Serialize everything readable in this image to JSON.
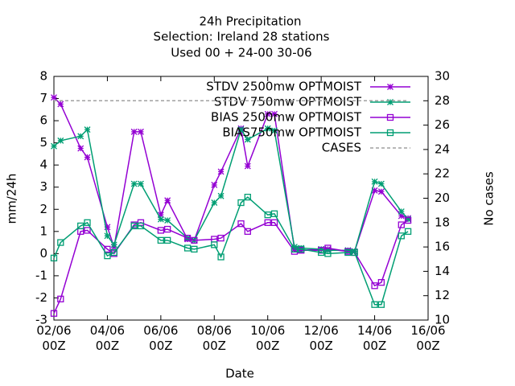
{
  "chart_data": {
    "type": "line",
    "title": "24h Precipitation",
    "subtitle": "Selection: Ireland      28 stations",
    "subtitle2": "Used  00 + 24-00 30-06",
    "xlabel": "Date",
    "ylabel": "mm/24h",
    "y2label": "No cases",
    "x": [
      0,
      0.25,
      1,
      1.25,
      2,
      2.25,
      3,
      3.25,
      4,
      4.25,
      5,
      5.25,
      6,
      6.25,
      7,
      7.25,
      8,
      8.25,
      9,
      9.25,
      10,
      10.25,
      11,
      11.25,
      12,
      12.25,
      13,
      13.25
    ],
    "xlim": [
      0,
      14
    ],
    "xticks": [
      {
        "value": 0,
        "label": "02/06\n00Z"
      },
      {
        "value": 2,
        "label": "04/06\n00Z"
      },
      {
        "value": 4,
        "label": "06/06\n00Z"
      },
      {
        "value": 6,
        "label": "08/06\n00Z"
      },
      {
        "value": 8,
        "label": "10/06\n00Z"
      },
      {
        "value": 10,
        "label": "12/06\n00Z"
      },
      {
        "value": 12,
        "label": "14/06\n00Z"
      },
      {
        "value": 14,
        "label": "16/06\n00Z"
      }
    ],
    "ylim": [
      -3,
      8
    ],
    "yticks": [
      -3,
      -2,
      -1,
      0,
      1,
      2,
      3,
      4,
      5,
      6,
      7,
      8
    ],
    "y2lim": [
      10,
      30
    ],
    "y2ticks": [
      10,
      12,
      14,
      16,
      18,
      20,
      22,
      24,
      26,
      28,
      30
    ],
    "legend": "top-right",
    "series": [
      {
        "name": "STDV 2500mw OPTMOIST",
        "color": "#9400d3",
        "marker": "cross",
        "values": [
          7.05,
          6.75,
          4.75,
          4.35,
          1.2,
          0.3,
          5.5,
          5.5,
          1.75,
          2.4,
          0.65,
          0.6,
          3.1,
          3.7,
          5.65,
          3.95,
          6.3,
          6.3,
          0.2,
          0.15,
          0.2,
          0.2,
          0.1,
          0.1,
          2.85,
          2.8,
          1.7,
          1.6
        ]
      },
      {
        "name": "STDV 750mw OPTMOIST",
        "color": "#009e73",
        "marker": "cross",
        "values": [
          4.85,
          5.1,
          5.3,
          5.6,
          0.8,
          0.4,
          3.15,
          3.15,
          1.55,
          1.5,
          0.7,
          0.6,
          2.3,
          2.6,
          5.6,
          5.15,
          5.65,
          5.55,
          0.3,
          0.25,
          0.2,
          0.15,
          0.15,
          0.1,
          3.25,
          3.15,
          1.9,
          1.55
        ]
      },
      {
        "name": "BIAS 2500mw OPTMOIST",
        "color": "#9400d3",
        "marker": "square",
        "values": [
          -2.7,
          -2.05,
          1.0,
          1.05,
          0.2,
          0.0,
          1.3,
          1.4,
          1.05,
          1.1,
          0.7,
          0.6,
          0.65,
          0.7,
          1.35,
          1.0,
          1.4,
          1.4,
          0.1,
          0.15,
          0.15,
          0.25,
          0.1,
          0.05,
          -1.45,
          -1.3,
          1.3,
          1.5
        ]
      },
      {
        "name": "BIAS750mw OPTMOIST",
        "color": "#009e73",
        "marker": "square",
        "values": [
          -0.2,
          0.5,
          1.25,
          1.4,
          -0.1,
          0.05,
          1.25,
          1.25,
          0.6,
          0.6,
          0.25,
          0.2,
          0.4,
          -0.15,
          2.3,
          2.55,
          1.75,
          1.8,
          0.2,
          0.2,
          0.05,
          0.0,
          0.05,
          0.05,
          -2.3,
          -2.3,
          0.8,
          1.0
        ]
      },
      {
        "name": "CASES",
        "color": "#a0a0a0",
        "marker": "none",
        "dashed": true,
        "axis": "y2",
        "values": [
          28,
          28,
          28,
          28,
          28,
          28,
          28,
          28,
          28,
          28,
          28,
          28,
          28,
          28,
          28,
          28,
          28,
          28,
          28,
          28,
          28,
          28,
          28,
          28,
          28,
          28,
          28,
          28
        ]
      }
    ]
  }
}
